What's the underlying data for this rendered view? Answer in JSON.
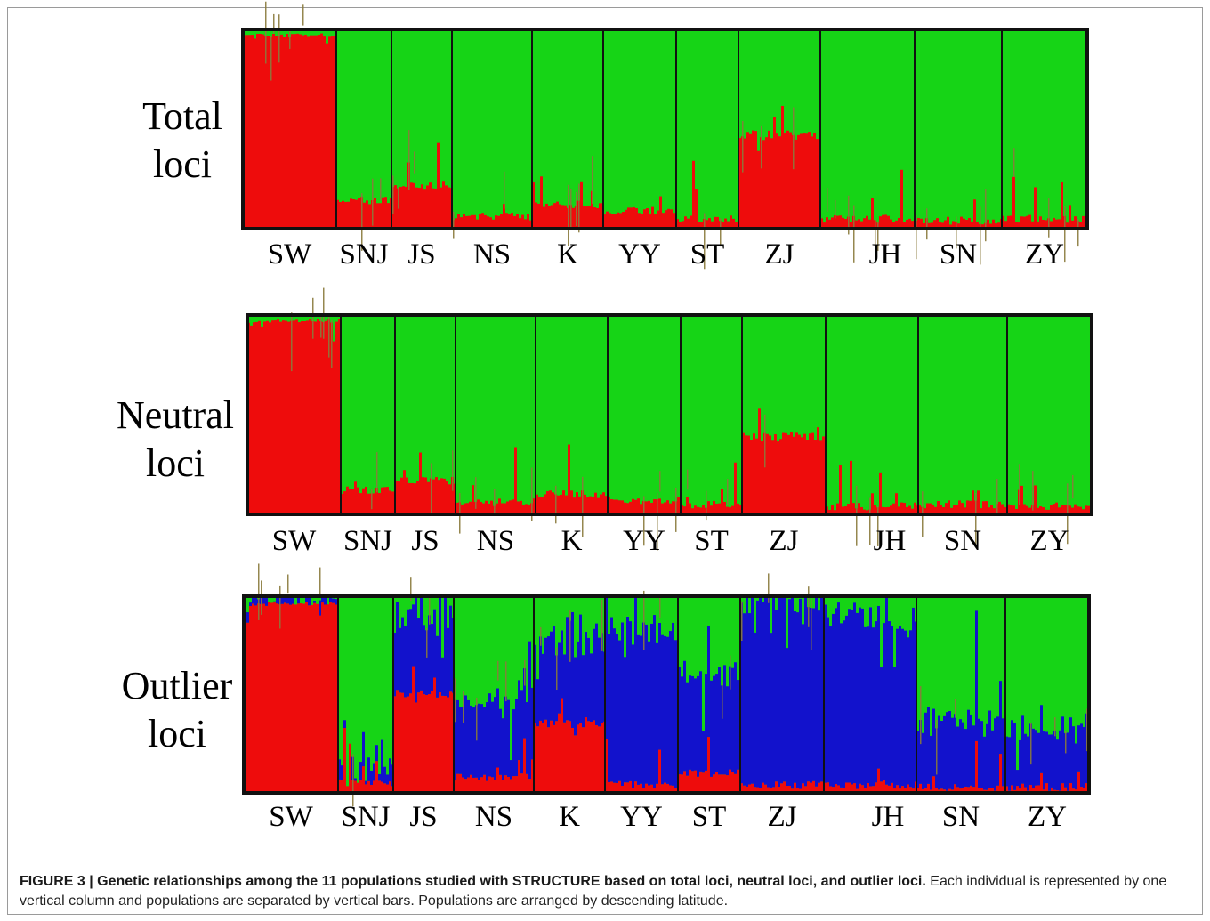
{
  "figure": {
    "caption_title": "FIGURE 3 | Genetic relationships among the 11 populations studied with STRUCTURE based on total loci, neutral loci, and outlier loci.",
    "caption_text": " Each individual is represented by one vertical column and populations are separated by vertical bars. Populations are arranged by descending latitude."
  },
  "colors": {
    "cluster1": "#ee0c0c",
    "cluster2": "#16d416",
    "cluster3": "#1212cc",
    "mix": "#8a7a3c",
    "border": "#111111"
  },
  "chart_data": [
    {
      "type": "bar",
      "title_lines": [
        "Total",
        "loci"
      ],
      "populations": [
        "SW",
        "SNJ",
        "JS",
        "NS",
        "K",
        "YY",
        "ST",
        "ZJ",
        "JH",
        "SN",
        "ZY"
      ],
      "series": [
        {
          "name": "",
          "color": "#ee0c0c",
          "values": [
            0.98,
            0.12,
            0.2,
            0.04,
            0.1,
            0.07,
            0.03,
            0.47,
            0.03,
            0.02,
            0.03
          ]
        },
        {
          "name": "",
          "color": "#16d416",
          "values": [
            0.02,
            0.88,
            0.8,
            0.96,
            0.9,
            0.93,
            0.97,
            0.53,
            0.97,
            0.98,
            0.97
          ]
        },
        {
          "name": "",
          "color": "#1212cc",
          "values": [
            0,
            0,
            0,
            0,
            0,
            0,
            0,
            0,
            0,
            0,
            0
          ]
        }
      ],
      "ylim": [
        0,
        1
      ]
    },
    {
      "type": "bar",
      "title_lines": [
        "Neutral",
        "loci"
      ],
      "populations": [
        "SW",
        "SNJ",
        "JS",
        "NS",
        "K",
        "YY",
        "ST",
        "ZJ",
        "JH",
        "SN",
        "ZY"
      ],
      "series": [
        {
          "name": "",
          "color": "#ee0c0c",
          "values": [
            0.98,
            0.1,
            0.15,
            0.04,
            0.08,
            0.05,
            0.03,
            0.39,
            0.02,
            0.03,
            0.02
          ]
        },
        {
          "name": "",
          "color": "#16d416",
          "values": [
            0.02,
            0.9,
            0.85,
            0.96,
            0.92,
            0.95,
            0.97,
            0.61,
            0.98,
            0.97,
            0.98
          ]
        },
        {
          "name": "",
          "color": "#1212cc",
          "values": [
            0,
            0,
            0,
            0,
            0,
            0,
            0,
            0,
            0,
            0,
            0
          ]
        }
      ],
      "ylim": [
        0,
        1
      ]
    },
    {
      "type": "bar",
      "title_lines": [
        "Outlier",
        "loci"
      ],
      "populations": [
        "SW",
        "SNJ",
        "JS",
        "NS",
        "K",
        "YY",
        "ST",
        "ZJ",
        "JH",
        "SN",
        "ZY"
      ],
      "series": [
        {
          "name": "",
          "color": "#ee0c0c",
          "values": [
            0.97,
            0.03,
            0.5,
            0.06,
            0.35,
            0.02,
            0.08,
            0.02,
            0.02,
            0.01,
            0.01
          ]
        },
        {
          "name": "",
          "color": "#16d416",
          "values": [
            0.02,
            0.92,
            0.12,
            0.58,
            0.25,
            0.2,
            0.42,
            0.04,
            0.12,
            0.65,
            0.7
          ]
        },
        {
          "name": "",
          "color": "#1212cc",
          "values": [
            0.01,
            0.05,
            0.38,
            0.36,
            0.4,
            0.78,
            0.5,
            0.94,
            0.86,
            0.34,
            0.29
          ]
        }
      ],
      "ylim": [
        0,
        1
      ]
    }
  ]
}
